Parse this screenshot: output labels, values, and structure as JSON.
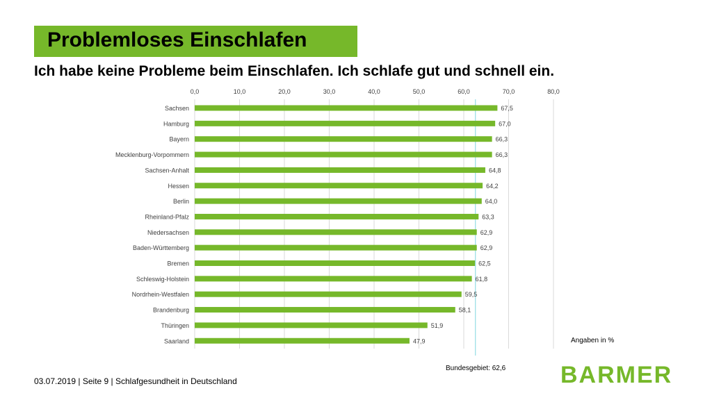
{
  "page": {
    "title": "Problemloses Einschlafen",
    "subtitle": "Ich habe keine Probleme beim Einschlafen. Ich schlafe gut und schnell ein.",
    "unit_note": "Angaben in %",
    "avg_label": "Bundesgebiet: 62,6",
    "footer": "03.07.2019 | Seite 9 | Schlafgesundheit in Deutschland",
    "logo": "BARMER"
  },
  "colors": {
    "accent": "#76b82a",
    "avg_line": "#7fd6e0",
    "grid": "#d9d9d9"
  },
  "chart_data": {
    "type": "bar",
    "orientation": "horizontal",
    "categories": [
      "Sachsen",
      "Hamburg",
      "Bayern",
      "Mecklenburg-Vorpommern",
      "Sachsen-Anhalt",
      "Hessen",
      "Berlin",
      "Rheinland-Pfalz",
      "Niedersachsen",
      "Baden-Württemberg",
      "Bremen",
      "Schleswig-Holstein",
      "Nordrhein-Westfalen",
      "Brandenburg",
      "Thüringen",
      "Saarland"
    ],
    "values": [
      67.5,
      67.0,
      66.3,
      66.3,
      64.8,
      64.2,
      64.0,
      63.3,
      62.9,
      62.9,
      62.5,
      61.8,
      59.5,
      58.1,
      51.9,
      47.9
    ],
    "value_labels": [
      "67,5",
      "67,0",
      "66,3",
      "66,3",
      "64,8",
      "64,2",
      "64,0",
      "63,3",
      "62,9",
      "62,9",
      "62,5",
      "61,8",
      "59,5",
      "58,1",
      "51,9",
      "47,9"
    ],
    "xlim": [
      0,
      80
    ],
    "ticks": [
      0,
      10,
      20,
      30,
      40,
      50,
      60,
      70,
      80
    ],
    "tick_labels": [
      "0,0",
      "10,0",
      "20,0",
      "30,0",
      "40,0",
      "50,0",
      "60,0",
      "70,0",
      "80,0"
    ],
    "axis_position": "top",
    "grid": true,
    "reference_line": {
      "value": 62.6
    }
  }
}
